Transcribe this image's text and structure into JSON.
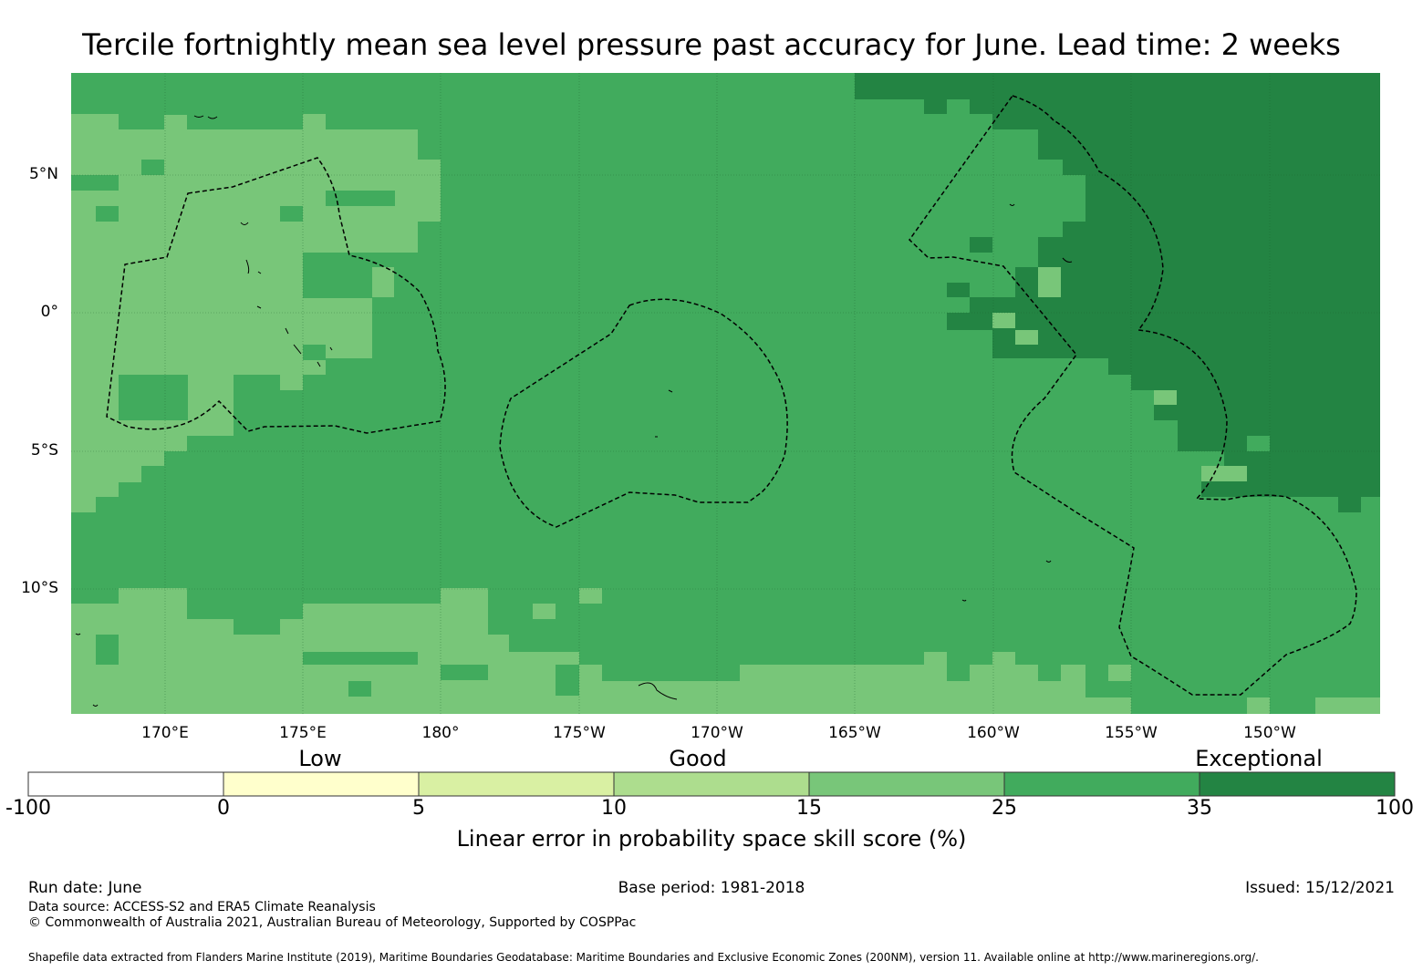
{
  "title": "Tercile fortnightly mean sea level pressure past accuracy for June. Lead time: 2 weeks",
  "map": {
    "lat_labels": [
      "5°N",
      "0°",
      "5°S",
      "10°S"
    ],
    "lon_labels": [
      "170°E",
      "175°E",
      "180°",
      "175°W",
      "170°W",
      "165°W",
      "160°W",
      "155°W",
      "150°W"
    ],
    "colors": {
      "c0": "#ffffff",
      "c1": "#ffffcc",
      "c2": "#d9f0a3",
      "c3": "#addd8e",
      "c4": "#78c679",
      "c5": "#41ab5d",
      "c6": "#238443"
    }
  },
  "colorbar": {
    "categories": [
      "Low",
      "Good",
      "Exceptional"
    ],
    "ticks": [
      "-100",
      "0",
      "5",
      "10",
      "15",
      "25",
      "35",
      "100"
    ],
    "label": "Linear error in probability space skill score (%)"
  },
  "footer": {
    "run_date": "Run date: June",
    "base_period": "Base period: 1981-2018",
    "issued": "Issued: 15/12/2021",
    "data_source": "Data source: ACCESS-S2 and ERA5 Climate Reanalysis",
    "copyright": "© Commonwealth of Australia 2021, Australian Bureau of Meteorology, Supported by COSPPac",
    "shapefile": "Shapefile data extracted from Flanders Marine Institute (2019), Maritime Boundaries Geodatabase: Maritime Boundaries and Exclusive Economic Zones (200NM), version 11. Available online at http://www.marineregions.org/."
  }
}
